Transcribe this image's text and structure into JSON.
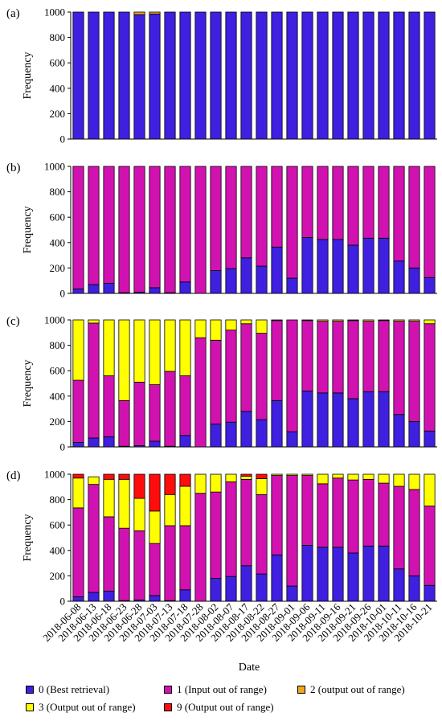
{
  "chart_data": {
    "type": "bar",
    "stacked": true,
    "xlabel": "Date",
    "ylabel": "Frequency",
    "ylim": [
      0,
      1000
    ],
    "yticks": [
      0,
      200,
      400,
      600,
      800,
      1000
    ],
    "categories": [
      "2018-06-08",
      "2018-06-13",
      "2018-06-18",
      "2018-06-23",
      "2018-06-28",
      "2018-07-03",
      "2018-07-13",
      "2018-07-18",
      "2018-07-28",
      "2018-08-02",
      "2018-08-07",
      "2018-08-17",
      "2018-08-22",
      "2018-08-27",
      "2018-09-01",
      "2018-09-06",
      "2018-09-11",
      "2018-09-16",
      "2018-09-21",
      "2018-09-26",
      "2018-10-01",
      "2018-10-11",
      "2018-10-16",
      "2018-10-21"
    ],
    "legend": [
      {
        "code": "0",
        "label": "0 (Best retrieval)",
        "color": "#3f1fe0"
      },
      {
        "code": "1",
        "label": "1 (Input out of range)",
        "color": "#d212b0"
      },
      {
        "code": "2",
        "label": "2 (output out of range)",
        "color": "#f2a81d"
      },
      {
        "code": "3",
        "label": "3 (Output out of range)",
        "color": "#ffff00"
      },
      {
        "code": "9",
        "label": "9 (Output out of range)",
        "color": "#ff0d0d"
      }
    ],
    "panels": [
      {
        "label": "(a)",
        "series": [
          {
            "code": "0",
            "values": [
              1000,
              1000,
              1000,
              1000,
              980,
              985,
              1000,
              1000,
              1000,
              1000,
              1000,
              1000,
              1000,
              1000,
              1000,
              1000,
              1000,
              1000,
              1000,
              1000,
              1000,
              1000,
              1000,
              1000
            ]
          },
          {
            "code": "2",
            "values": [
              0,
              0,
              0,
              0,
              20,
              15,
              0,
              0,
              0,
              0,
              0,
              0,
              0,
              0,
              0,
              0,
              0,
              0,
              0,
              0,
              0,
              0,
              0,
              0
            ]
          }
        ]
      },
      {
        "label": "(b)",
        "series": [
          {
            "code": "0",
            "values": [
              35,
              70,
              80,
              5,
              10,
              45,
              5,
              90,
              0,
              180,
              195,
              280,
              215,
              365,
              120,
              440,
              425,
              425,
              380,
              435,
              435,
              255,
              200,
              125
            ]
          },
          {
            "code": "1",
            "values": [
              965,
              930,
              920,
              995,
              990,
              955,
              995,
              910,
              1000,
              820,
              805,
              720,
              785,
              635,
              880,
              560,
              575,
              575,
              620,
              565,
              565,
              745,
              800,
              875
            ]
          }
        ]
      },
      {
        "label": "(c)",
        "series": [
          {
            "code": "0",
            "values": [
              35,
              70,
              80,
              5,
              10,
              45,
              5,
              90,
              0,
              180,
              195,
              280,
              215,
              365,
              120,
              440,
              425,
              425,
              380,
              435,
              435,
              255,
              200,
              125
            ]
          },
          {
            "code": "1",
            "values": [
              490,
              905,
              480,
              360,
              500,
              445,
              590,
              470,
              860,
              660,
              725,
              690,
              680,
              630,
              880,
              555,
              565,
              565,
              615,
              555,
              560,
              735,
              790,
              845
            ]
          },
          {
            "code": "3",
            "values": [
              475,
              25,
              440,
              635,
              490,
              510,
              405,
              440,
              140,
              160,
              80,
              30,
              105,
              5,
              0,
              5,
              10,
              10,
              5,
              10,
              5,
              10,
              10,
              30
            ]
          }
        ]
      },
      {
        "label": "(d)",
        "series": [
          {
            "code": "0",
            "values": [
              35,
              70,
              80,
              5,
              10,
              45,
              5,
              90,
              0,
              180,
              195,
              280,
              215,
              365,
              120,
              440,
              425,
              425,
              380,
              435,
              435,
              255,
              200,
              125
            ]
          },
          {
            "code": "1",
            "values": [
              700,
              850,
              585,
              570,
              545,
              410,
              590,
              505,
              850,
              680,
              745,
              680,
              625,
              625,
              870,
              550,
              500,
              545,
              575,
              525,
              495,
              650,
              680,
              625
            ]
          },
          {
            "code": "3",
            "values": [
              235,
              60,
              295,
              385,
              255,
              255,
              245,
              310,
              150,
              140,
              60,
              25,
              125,
              10,
              10,
              10,
              75,
              30,
              45,
              40,
              70,
              95,
              120,
              250
            ]
          },
          {
            "code": "9",
            "values": [
              30,
              0,
              40,
              40,
              190,
              290,
              160,
              95,
              0,
              0,
              0,
              15,
              35,
              0,
              0,
              0,
              0,
              0,
              0,
              0,
              0,
              0,
              0,
              0
            ]
          }
        ]
      }
    ]
  }
}
